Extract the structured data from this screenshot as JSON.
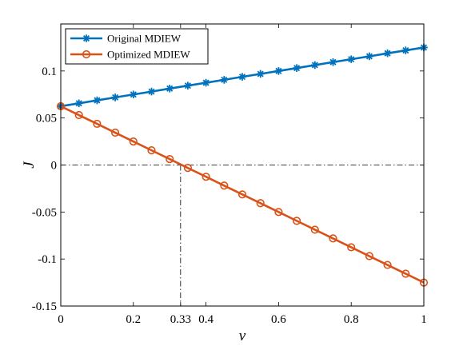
{
  "chart_data": {
    "type": "line",
    "title": "",
    "xlabel": "ν",
    "ylabel": "J",
    "xlim": [
      0,
      1
    ],
    "ylim": [
      -0.15,
      0.15
    ],
    "xticks": [
      0,
      0.2,
      0.33,
      0.4,
      0.6,
      0.8,
      1
    ],
    "xtick_labels": [
      "0",
      "0.2",
      "0.33",
      "0.4",
      "0.6",
      "0.8",
      "1"
    ],
    "yticks": [
      -0.15,
      -0.1,
      -0.05,
      0,
      0.05,
      0.1
    ],
    "ytick_labels": [
      "-0.15",
      "-0.1",
      "-0.05",
      "0",
      "0.05",
      "0.1"
    ],
    "legend_position": "top-left",
    "grid": false,
    "x": [
      0,
      0.05,
      0.1,
      0.15,
      0.2,
      0.25,
      0.3,
      0.35,
      0.4,
      0.45,
      0.5,
      0.55,
      0.6,
      0.65,
      0.7,
      0.75,
      0.8,
      0.85,
      0.9,
      0.95,
      1
    ],
    "series": [
      {
        "name": "Original MDIEW",
        "color": "#0072BD",
        "marker": "asterisk",
        "values": [
          0.0625,
          0.0656,
          0.0688,
          0.0719,
          0.075,
          0.0781,
          0.0813,
          0.0844,
          0.0875,
          0.0906,
          0.0938,
          0.0969,
          0.1,
          0.1031,
          0.1063,
          0.1094,
          0.1125,
          0.1156,
          0.1188,
          0.1219,
          0.125
        ]
      },
      {
        "name": "Optimized MDIEW",
        "color": "#D95319",
        "marker": "circle",
        "values": [
          0.0625,
          0.0531,
          0.0438,
          0.0344,
          0.025,
          0.0156,
          0.0063,
          -0.0031,
          -0.0125,
          -0.0219,
          -0.0313,
          -0.0406,
          -0.05,
          -0.0594,
          -0.0688,
          -0.0781,
          -0.0875,
          -0.0969,
          -0.1063,
          -0.1156,
          -0.125
        ]
      }
    ],
    "annotations": {
      "horizontal_line_y": 0,
      "vertical_line_x": 0.33,
      "line_style": "dash-dot"
    }
  }
}
